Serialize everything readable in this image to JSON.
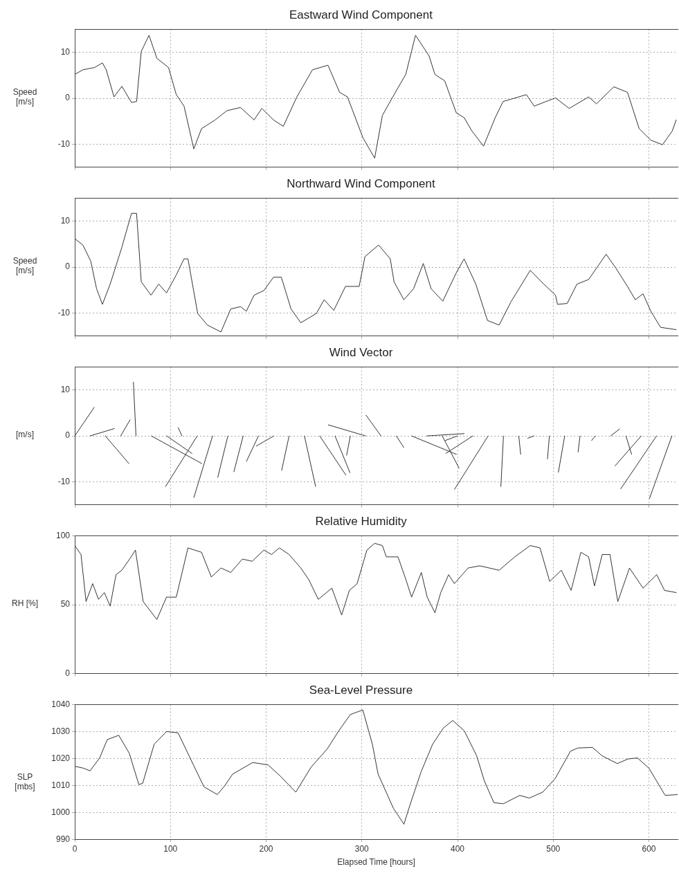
{
  "chart_data": [
    {
      "type": "line",
      "title": "Eastward Wind Component",
      "ylabel": "Speed [m/s]",
      "xlim": [
        0,
        630
      ],
      "xticks": [
        0,
        100,
        200,
        300,
        400,
        500,
        600
      ],
      "ylim": [
        -15,
        15
      ],
      "yticks": [
        -10,
        0,
        10
      ],
      "grid": true,
      "tick_labels": "y",
      "marker": "none",
      "series": [
        {
          "color": "#333333",
          "x": [
            0,
            8.5,
            20.7,
            28.9,
            32.9,
            41,
            49.2,
            59.3,
            64.6,
            69.5,
            77.6,
            85.8,
            98,
            106.1,
            114.2,
            124.4,
            132.5,
            146.7,
            158.9,
            173.2,
            187.4,
            195.5,
            207.7,
            217.9,
            232.1,
            248.4,
            264.6,
            276.8,
            285,
            301.2,
            313.4,
            321.5,
            337.8,
            345.9,
            356.1,
            370.3,
            376.4,
            386.6,
            398.8,
            406.9,
            415,
            427.2,
            439.4,
            447.6,
            472,
            480.1,
            502.4,
            516.7,
            537,
            545.1,
            563.4,
            577.6,
            589.8,
            602,
            614.2,
            624.4,
            628.5
          ],
          "values": [
            5.2,
            6.2,
            6.7,
            7.7,
            6.2,
            0.3,
            2.6,
            -0.9,
            -0.7,
            10.2,
            13.7,
            8.7,
            6.7,
            0.8,
            -1.7,
            -11,
            -6.6,
            -4.7,
            -2.7,
            -2,
            -4.7,
            -2.2,
            -4.7,
            -6.1,
            0.3,
            6.2,
            7.2,
            1.3,
            0.3,
            -8.6,
            -13,
            -3.7,
            2.3,
            5.2,
            13.7,
            9.2,
            5.2,
            3.8,
            -3.2,
            -4.2,
            -7.1,
            -10.4,
            -4.2,
            -0.7,
            0.8,
            -1.7,
            0.1,
            -2.2,
            0.3,
            -1.2,
            2.5,
            1.3,
            -6.6,
            -9.1,
            -10.1,
            -7.1,
            -4.7
          ]
        }
      ]
    },
    {
      "type": "line",
      "title": "Northward Wind Component",
      "ylabel": "Speed [m/s]",
      "xlim": [
        0,
        630
      ],
      "xticks": [
        0,
        100,
        200,
        300,
        400,
        500,
        600
      ],
      "ylim": [
        -15,
        15
      ],
      "yticks": [
        -10,
        0,
        10
      ],
      "grid": true,
      "tick_labels": "y",
      "marker": "none",
      "series": [
        {
          "color": "#333333",
          "x": [
            0,
            8.5,
            16.7,
            22.8,
            28.9,
            37,
            49.2,
            59.3,
            64.6,
            69.5,
            79.7,
            87.8,
            95.9,
            106.1,
            114.2,
            118.3,
            128.5,
            138.6,
            152.8,
            163,
            173.2,
            179.3,
            187.4,
            197.6,
            207.7,
            215.9,
            226,
            236.2,
            252.4,
            260.6,
            270.7,
            282.9,
            297.2,
            303.3,
            317.5,
            329.7,
            333.7,
            343.9,
            354.1,
            364.2,
            372.4,
            384.6,
            398.8,
            406.9,
            419.1,
            431.3,
            443.5,
            455.7,
            476,
            490.2,
            502.4,
            504.5,
            514.6,
            524.8,
            537,
            555.3,
            565.4,
            577.6,
            585.8,
            593.9,
            602,
            612.2,
            628.5
          ],
          "values": [
            6.2,
            4.8,
            1.3,
            -4.7,
            -8.1,
            -3.7,
            4.3,
            11.7,
            11.7,
            -3.2,
            -6.1,
            -3.7,
            -5.6,
            -1.7,
            1.8,
            1.8,
            -10.1,
            -12.6,
            -14.1,
            -9.1,
            -8.6,
            -9.6,
            -6.1,
            -5.1,
            -2.2,
            -2.2,
            -9.1,
            -12.1,
            -10.1,
            -7.1,
            -9.4,
            -4.2,
            -4.2,
            2.3,
            4.8,
            1.8,
            -3.2,
            -7.1,
            -4.7,
            0.8,
            -4.7,
            -7.4,
            -1.2,
            1.8,
            -3.7,
            -11.6,
            -12.6,
            -7.6,
            -0.7,
            -3.7,
            -6.1,
            -8.1,
            -7.9,
            -3.7,
            -2.7,
            2.8,
            -0.2,
            -4.2,
            -7.1,
            -5.8,
            -9.6,
            -13.1,
            -13.6
          ]
        }
      ]
    },
    {
      "type": "line",
      "title": "Wind Vector",
      "ylabel": "[m/s]",
      "xlim": [
        0,
        630
      ],
      "xticks": [
        0,
        100,
        200,
        300,
        400,
        500,
        600
      ],
      "ylim": [
        -15,
        15
      ],
      "yticks": [
        -10,
        0,
        10
      ],
      "grid": true,
      "tick_labels": "y",
      "marker": "none",
      "series": [
        {
          "color": "#333333",
          "x": [
            0,
            20.3
          ],
          "values": [
            0,
            6.2
          ]
        },
        {
          "color": "#333333",
          "x": [
            16,
            41.4
          ],
          "values": [
            0,
            1.6
          ]
        },
        {
          "color": "#333333",
          "x": [
            32,
            56.6
          ],
          "values": [
            0,
            -6
          ]
        },
        {
          "color": "#333333",
          "x": [
            48,
            57.8
          ],
          "values": [
            0,
            3.5
          ]
        },
        {
          "color": "#333333",
          "x": [
            64,
            61.3
          ],
          "values": [
            0,
            11.7
          ]
        },
        {
          "color": "#333333",
          "x": [
            80,
            132.7
          ],
          "values": [
            0,
            -6
          ]
        },
        {
          "color": "#333333",
          "x": [
            96,
            122.5
          ],
          "values": [
            0,
            -3.8
          ]
        },
        {
          "color": "#333333",
          "x": [
            112,
            108.1
          ],
          "values": [
            0,
            1.8
          ]
        },
        {
          "color": "#333333",
          "x": [
            128,
            94.9
          ],
          "values": [
            0,
            -11
          ]
        },
        {
          "color": "#333333",
          "x": [
            144,
            124.5
          ],
          "values": [
            0,
            -13.4
          ]
        },
        {
          "color": "#333333",
          "x": [
            160,
            149.5
          ],
          "values": [
            0,
            -9
          ]
        },
        {
          "color": "#333333",
          "x": [
            176,
            166.3
          ],
          "values": [
            0,
            -7.8
          ]
        },
        {
          "color": "#333333",
          "x": [
            192,
            179.5
          ],
          "values": [
            0,
            -5.5
          ]
        },
        {
          "color": "#333333",
          "x": [
            208,
            189.7
          ],
          "values": [
            0,
            -2.2
          ]
        },
        {
          "color": "#333333",
          "x": [
            224,
            216.2
          ],
          "values": [
            0,
            -7.5
          ]
        },
        {
          "color": "#333333",
          "x": [
            240,
            251.7
          ],
          "values": [
            0,
            -11
          ]
        },
        {
          "color": "#333333",
          "x": [
            256,
            283.3
          ],
          "values": [
            0,
            -8.5
          ]
        },
        {
          "color": "#333333",
          "x": [
            272,
            287.6
          ],
          "values": [
            0,
            -8
          ]
        },
        {
          "color": "#333333",
          "x": [
            288,
            284.1
          ],
          "values": [
            0,
            -4.2
          ]
        },
        {
          "color": "#333333",
          "x": [
            304,
            265
          ],
          "values": [
            0,
            2.4
          ]
        },
        {
          "color": "#333333",
          "x": [
            320,
            304.4
          ],
          "values": [
            0,
            4.5
          ]
        },
        {
          "color": "#333333",
          "x": [
            336,
            343.8
          ],
          "values": [
            0,
            -2.5
          ]
        },
        {
          "color": "#333333",
          "x": [
            352,
            398.8
          ],
          "values": [
            0,
            -4
          ]
        },
        {
          "color": "#333333",
          "x": [
            368,
            407
          ],
          "values": [
            0,
            0.5
          ]
        },
        {
          "color": "#333333",
          "x": [
            384,
            401.6
          ],
          "values": [
            0,
            -7
          ]
        },
        {
          "color": "#333333",
          "x": [
            400,
            387.1
          ],
          "values": [
            0,
            -1
          ]
        },
        {
          "color": "#333333",
          "x": [
            416,
            387.9
          ],
          "values": [
            0,
            -3.8
          ]
        },
        {
          "color": "#333333",
          "x": [
            432,
            396.9
          ],
          "values": [
            0,
            -11.6
          ]
        },
        {
          "color": "#333333",
          "x": [
            448,
            445.3
          ],
          "values": [
            0,
            -11
          ]
        },
        {
          "color": "#333333",
          "x": [
            464,
            466
          ],
          "values": [
            0,
            -4
          ]
        },
        {
          "color": "#333333",
          "x": [
            480,
            473.4
          ],
          "values": [
            0,
            -0.5
          ]
        },
        {
          "color": "#333333",
          "x": [
            496,
            494
          ],
          "values": [
            0,
            -5
          ]
        },
        {
          "color": "#333333",
          "x": [
            512,
            505.4
          ],
          "values": [
            0,
            -7.9
          ]
        },
        {
          "color": "#333333",
          "x": [
            528,
            526
          ],
          "values": [
            0,
            -3.5
          ]
        },
        {
          "color": "#333333",
          "x": [
            544,
            540.1
          ],
          "values": [
            0,
            -1
          ]
        },
        {
          "color": "#333333",
          "x": [
            560,
            569.4
          ],
          "values": [
            0,
            1.5
          ]
        },
        {
          "color": "#333333",
          "x": [
            576,
            581.9
          ],
          "values": [
            0,
            -4
          ]
        },
        {
          "color": "#333333",
          "x": [
            592,
            564.7
          ],
          "values": [
            0,
            -6.5
          ]
        },
        {
          "color": "#333333",
          "x": [
            608,
            570.6
          ],
          "values": [
            0,
            -11.5
          ]
        },
        {
          "color": "#333333",
          "x": [
            624,
            600.6
          ],
          "values": [
            0,
            -13.6
          ]
        }
      ]
    },
    {
      "type": "line",
      "title": "Relative Humidity",
      "ylabel": "RH [%]",
      "xlim": [
        0,
        630
      ],
      "xticks": [
        0,
        100,
        200,
        300,
        400,
        500,
        600
      ],
      "ylim": [
        0,
        100
      ],
      "yticks": [
        0,
        50,
        100
      ],
      "grid": true,
      "tick_labels": "y",
      "marker": "none",
      "series": [
        {
          "color": "#333333",
          "x": [
            0,
            6.5,
            11.8,
            18.7,
            24.8,
            30.9,
            37,
            43.1,
            49.2,
            57.3,
            63.4,
            71.5,
            85.8,
            95.9,
            106.1,
            118.3,
            132.5,
            142.7,
            152.8,
            163,
            175.2,
            185.4,
            197.6,
            205.7,
            213.8,
            224,
            236.2,
            244.3,
            254.5,
            268.7,
            278.9,
            287,
            295.1,
            305.3,
            313.4,
            321.5,
            325.6,
            337.8,
            345.9,
            352,
            362.2,
            368.3,
            376.4,
            382.5,
            390.7,
            396.7,
            411,
            423.2,
            443.5,
            459.8,
            476,
            486.2,
            496.3,
            508.5,
            518.7,
            528.9,
            537,
            543.1,
            551.2,
            559.3,
            567.5,
            579.7,
            593.9,
            608.1,
            616.3,
            628.5
          ],
          "values": [
            92.9,
            86.4,
            52.3,
            65.3,
            53.9,
            58.8,
            49,
            71.8,
            75,
            83.1,
            89.6,
            52.3,
            39.3,
            55.5,
            55.5,
            91.2,
            88,
            70.1,
            76.6,
            73.4,
            83.1,
            81.5,
            89.6,
            86.4,
            91.2,
            86.4,
            76.6,
            68.5,
            53.9,
            62,
            42.5,
            60.4,
            65.3,
            89.6,
            94.5,
            92.9,
            84.7,
            84.7,
            68.5,
            55.5,
            73.4,
            55.5,
            44.2,
            58.8,
            71.8,
            65.3,
            76.6,
            78.2,
            75,
            84.7,
            92.9,
            91.2,
            66.9,
            75,
            60.4,
            88,
            84.7,
            63.6,
            86.4,
            86.4,
            52.3,
            76.6,
            62,
            71.8,
            60.4,
            58.8
          ]
        }
      ]
    },
    {
      "type": "line",
      "title": "Sea-Level Pressure",
      "xlabel": "Elapsed Time [hours]",
      "ylabel": "SLP [mbs]",
      "xlim": [
        0,
        630
      ],
      "xticks": [
        0,
        100,
        200,
        300,
        400,
        500,
        600
      ],
      "ylim": [
        990,
        1040
      ],
      "yticks": [
        990,
        1000,
        1010,
        1020,
        1030,
        1040
      ],
      "grid": true,
      "marker": "none",
      "series": [
        {
          "color": "#333333",
          "x": [
            0,
            9,
            16,
            26,
            34,
            46,
            57,
            67,
            71,
            83,
            96,
            108,
            124,
            135,
            149,
            157,
            165,
            186,
            202,
            215,
            231,
            247,
            264,
            276,
            288,
            301,
            311,
            317,
            333,
            344,
            350,
            362,
            374,
            385,
            395,
            407,
            420,
            428,
            438,
            448,
            465,
            475,
            489,
            502,
            518,
            526,
            541,
            551,
            567,
            578,
            588,
            600,
            617,
            630
          ],
          "values": [
            1017.1,
            1016.4,
            1015.4,
            1020.2,
            1027,
            1028.6,
            1021.9,
            1010.3,
            1010.8,
            1025.3,
            1030,
            1029.5,
            1017.6,
            1009.5,
            1006.6,
            1010,
            1014.2,
            1018.5,
            1017.6,
            1013.4,
            1007.5,
            1016.8,
            1023.6,
            1030.3,
            1036.3,
            1038,
            1025.3,
            1014.2,
            1001.5,
            995.6,
            1002.4,
            1015.1,
            1025.3,
            1031.2,
            1034.1,
            1030.3,
            1021,
            1011.7,
            1003.6,
            1003.2,
            1006.3,
            1005.3,
            1007.5,
            1012.5,
            1022.7,
            1023.9,
            1024.1,
            1021,
            1018.1,
            1019.8,
            1020.2,
            1016.4,
            1006.3,
            1006.6
          ]
        }
      ]
    }
  ]
}
